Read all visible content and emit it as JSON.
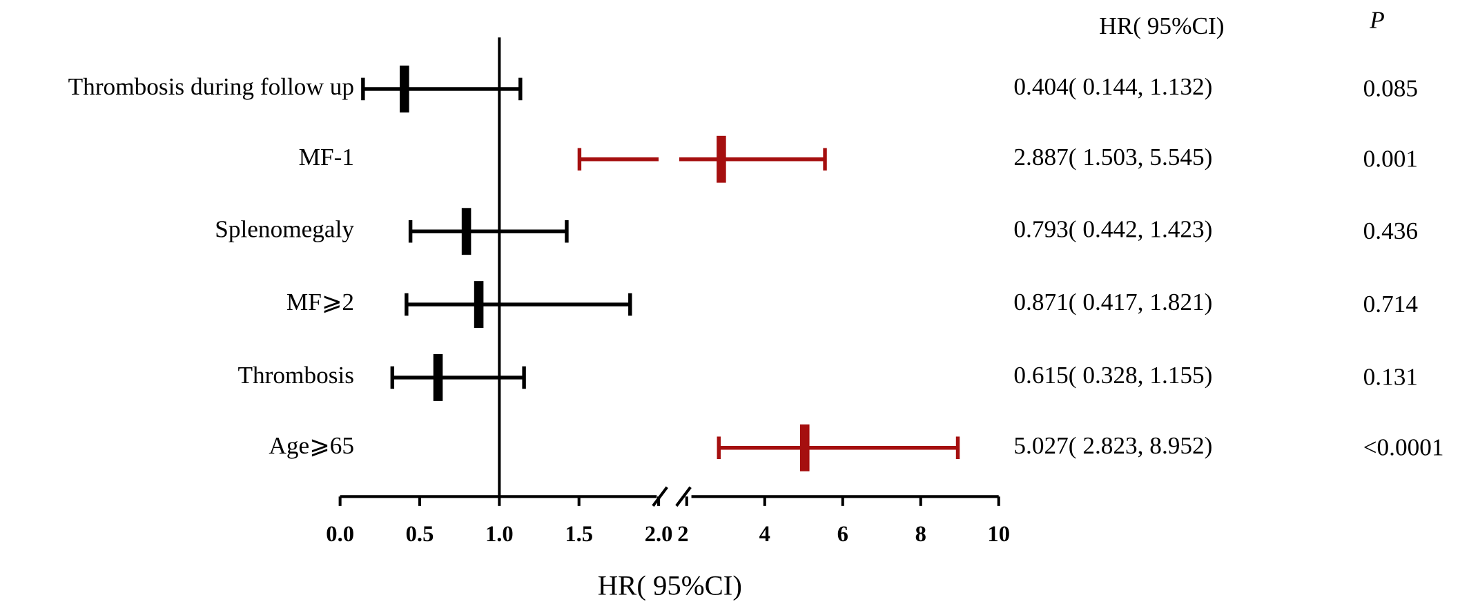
{
  "chart_data": {
    "type": "forest",
    "x_label": "HR( 95%CI)",
    "column_headers": {
      "hr_ci": "HR( 95%CI)",
      "p": "P"
    },
    "categories": [
      "Thrombosis during follow up",
      "MF-1",
      "Splenomegaly",
      "MF⩾2",
      "Thrombosis",
      "Age⩾65"
    ],
    "hr": [
      0.404,
      2.887,
      0.793,
      0.871,
      0.615,
      5.027
    ],
    "lower": [
      0.144,
      1.503,
      0.442,
      0.417,
      0.328,
      2.823
    ],
    "upper": [
      1.132,
      5.545,
      1.423,
      1.821,
      1.155,
      8.952
    ],
    "hr_ci_labels": [
      "0.404( 0.144, 1.132)",
      "2.887( 1.503, 5.545)",
      "0.793( 0.442, 1.423)",
      "0.871( 0.417, 1.821)",
      "0.615( 0.328, 1.155)",
      "5.027( 2.823, 8.952)"
    ],
    "p_labels": [
      "0.085",
      "0.001",
      "0.436",
      "0.714",
      "0.131",
      "<0.0001"
    ],
    "colors": [
      "#000000",
      "#a50f0f",
      "#000000",
      "#000000",
      "#000000",
      "#a50f0f"
    ],
    "reference_line": 1,
    "axis_segments": [
      {
        "xlim": [
          0,
          2
        ],
        "xticks": [
          {
            "value": 0,
            "label": "0.0"
          },
          {
            "value": 0.5,
            "label": "0.5"
          },
          {
            "value": 1,
            "label": "1.0"
          },
          {
            "value": 1.5,
            "label": "1.5"
          },
          {
            "value": 2,
            "label": "2.0"
          }
        ]
      },
      {
        "xlim": [
          2,
          10
        ],
        "xticks": [
          2,
          4,
          6,
          8,
          10
        ]
      }
    ]
  }
}
